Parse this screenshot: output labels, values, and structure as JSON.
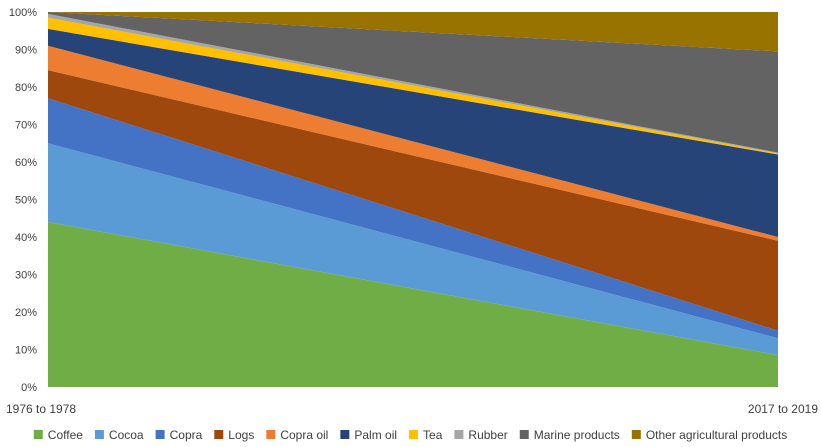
{
  "chart_data": {
    "type": "area",
    "stacked": true,
    "percent": true,
    "categories": [
      "1976 to 1978",
      "2017 to 2019"
    ],
    "y_ticks": [
      "0%",
      "10%",
      "20%",
      "30%",
      "40%",
      "50%",
      "60%",
      "70%",
      "80%",
      "90%",
      "100%"
    ],
    "ylim": [
      0,
      100
    ],
    "legend_position": "bottom",
    "series": [
      {
        "name": "Coffee",
        "color": "#70ad47",
        "values": [
          44,
          8.5
        ]
      },
      {
        "name": "Cocoa",
        "color": "#5b9bd5",
        "values": [
          21,
          4.5
        ]
      },
      {
        "name": "Copra",
        "color": "#4472c4",
        "values": [
          12,
          2
        ]
      },
      {
        "name": "Logs",
        "color": "#9e480e",
        "values": [
          7.5,
          24
        ]
      },
      {
        "name": "Copra oil",
        "color": "#ed7d31",
        "values": [
          6.5,
          1
        ]
      },
      {
        "name": "Palm oil",
        "color": "#264478",
        "values": [
          4.5,
          22
        ]
      },
      {
        "name": "Tea",
        "color": "#ffc000",
        "values": [
          3,
          0.3
        ]
      },
      {
        "name": "Rubber",
        "color": "#a5a5a5",
        "values": [
          1,
          0.2
        ]
      },
      {
        "name": "Marine products",
        "color": "#636363",
        "values": [
          0.5,
          27
        ]
      },
      {
        "name": "Other agricultural products",
        "color": "#997300",
        "values": [
          0,
          10.5
        ]
      }
    ]
  }
}
